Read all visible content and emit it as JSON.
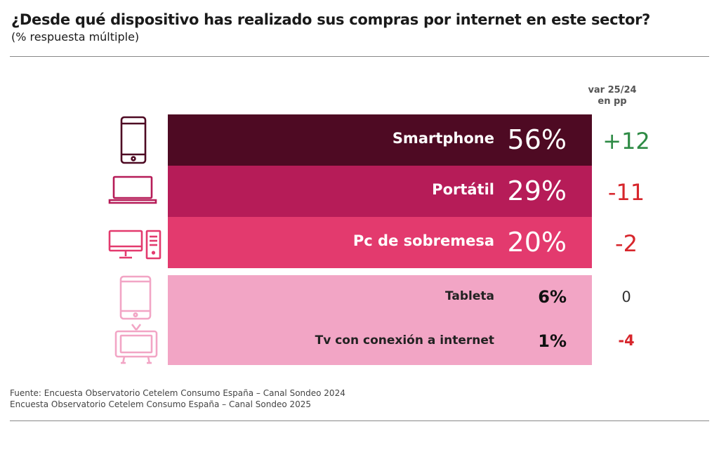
{
  "title": "¿Desde qué dispositivo has realizado sus compras por internet en este sector?",
  "subtitle": "(% respuesta múltiple)",
  "var_header": [
    "var 25/24",
    "en pp"
  ],
  "source": [
    "Fuente: Encuesta Observatorio Cetelem Consumo España – Canal Sondeo 2024",
    "Encuesta Observatorio Cetelem Consumo España – Canal Sondeo 2025"
  ],
  "chart_data": {
    "type": "bar",
    "title": "¿Desde qué dispositivo has realizado sus compras por internet en este sector?",
    "subtitle": "(% respuesta múltiple)",
    "unit": "%",
    "categories": [
      "Smartphone",
      "Portátil",
      "Pc de sobremesa",
      "Tableta",
      "Tv con conexión a internet"
    ],
    "values": [
      56,
      29,
      20,
      6,
      1
    ],
    "value_labels": [
      "56%",
      "29%",
      "20%",
      "6%",
      "1%"
    ],
    "variation_header": "var 25/24 en pp",
    "variation": [
      12,
      -11,
      -2,
      0,
      -4
    ],
    "variation_labels": [
      "+12",
      "-11",
      "-2",
      "0",
      "-4"
    ],
    "colors": {
      "bar_fills": [
        "#4e0a23",
        "#b61c58",
        "#e33a6e",
        "#f2a5c5",
        "#f2a5c5"
      ],
      "icon_colors": [
        "#4e0a23",
        "#b61c58",
        "#e33a6e",
        "#f2a5c5",
        "#f2a5c5"
      ],
      "positive": "#2e8b45",
      "negative": "#d7262c",
      "neutral": "#333333"
    },
    "icons": [
      "smartphone-icon",
      "laptop-icon",
      "desktop-pc-icon",
      "tablet-icon",
      "tv-icon"
    ]
  }
}
